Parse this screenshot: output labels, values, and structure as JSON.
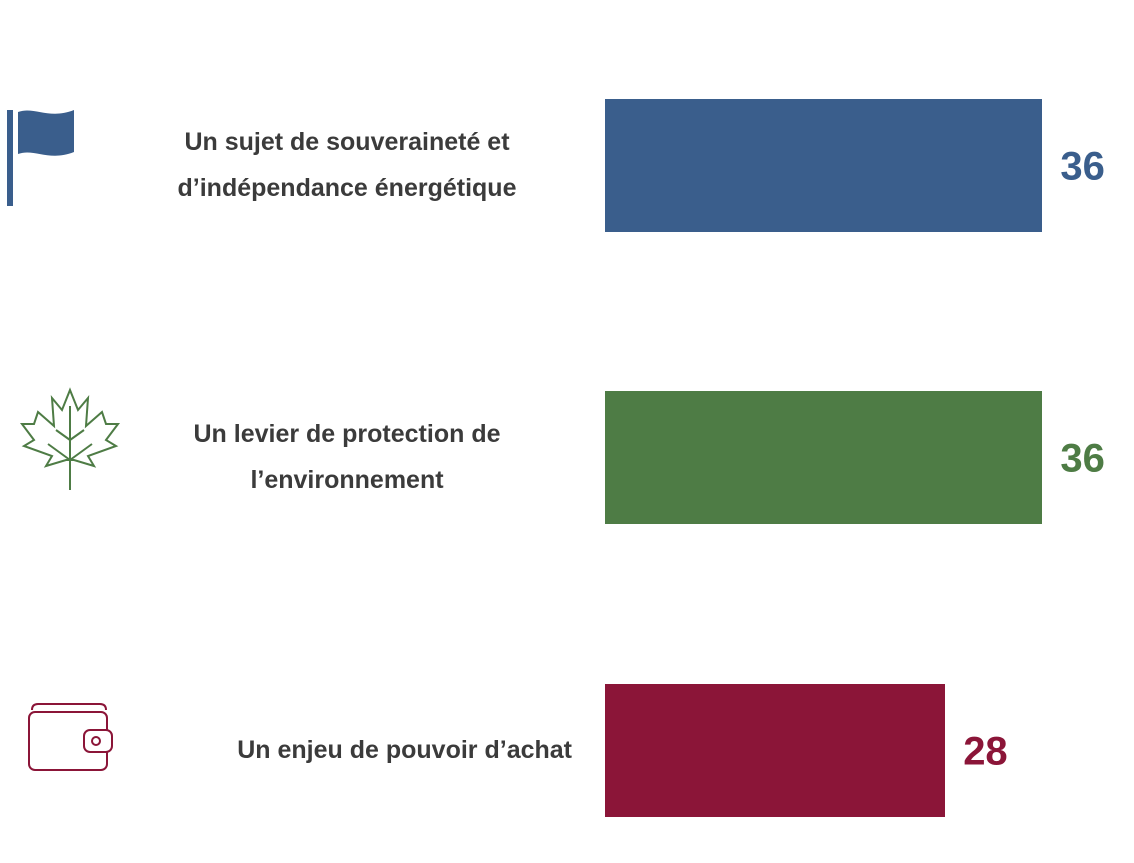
{
  "chart_data": {
    "type": "bar",
    "orientation": "horizontal",
    "categories": [
      "Un sujet de souveraineté et d’indépendance énergétique",
      "Un levier de protection de l’environnement",
      "Un enjeu de pouvoir d’achat"
    ],
    "values": [
      36,
      36,
      28
    ],
    "colors": [
      "#3a5e8c",
      "#4e7c45",
      "#8b1538"
    ]
  }
}
